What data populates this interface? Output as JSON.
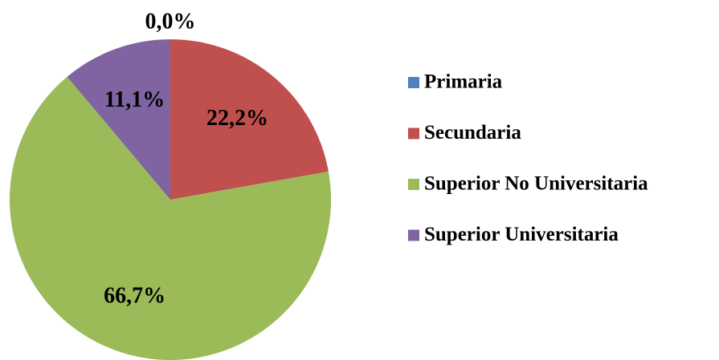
{
  "chart_data": {
    "type": "pie",
    "categories": [
      "Primaria",
      "Secundaria",
      "Superior No Universitaria",
      "Superior Universitaria"
    ],
    "values": [
      0,
      22.2,
      66.7,
      11.1
    ],
    "value_labels": [
      "0,0%",
      "22,2%",
      "66,7%",
      "11,1%"
    ],
    "colors": [
      "#4f81bd",
      "#c0504d",
      "#9bbb59",
      "#8064a2"
    ],
    "legend": "right"
  }
}
